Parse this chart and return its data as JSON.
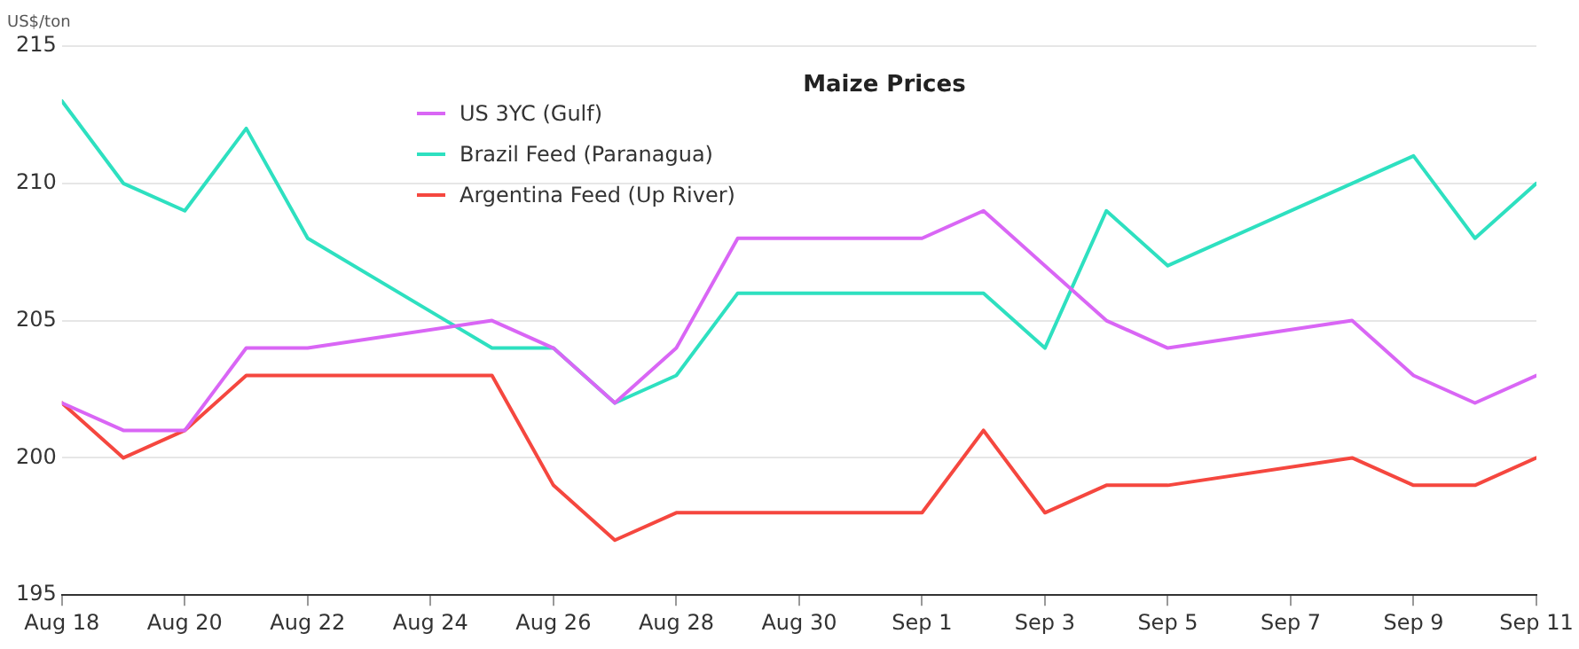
{
  "chart_data": {
    "type": "line",
    "title": "Maize Prices",
    "ylabel": "US$/ton",
    "x": [
      "--08-18",
      "--08-19",
      "--08-20",
      "--08-21",
      "--08-22",
      "--08-25",
      "--08-26",
      "--08-27",
      "--08-28",
      "--08-29",
      "--09-01",
      "--09-02",
      "--09-03",
      "--09-04",
      "--09-05",
      "--09-08",
      "--09-09",
      "--09-10",
      "--09-11"
    ],
    "series": [
      {
        "name": "US 3YC (Gulf)",
        "color": "#d966f5",
        "values": [
          202,
          201,
          201,
          204,
          204,
          205,
          204,
          202,
          204,
          208,
          208,
          209,
          207,
          205,
          204,
          205,
          203,
          202,
          203
        ]
      },
      {
        "name": "Brazil Feed (Paranagua)",
        "color": "#2ee0c0",
        "values": [
          213,
          210,
          209,
          212,
          208,
          204,
          204,
          202,
          203,
          206,
          206,
          206,
          204,
          209,
          207,
          210,
          211,
          208,
          210
        ]
      },
      {
        "name": "Argentina Feed (Up River)",
        "color": "#f5473f",
        "values": [
          202,
          200,
          201,
          203,
          203,
          203,
          199,
          197,
          198,
          198,
          198,
          201,
          198,
          199,
          199,
          200,
          199,
          199,
          200
        ]
      }
    ],
    "xlim": [
      "--08-18",
      "--09-11"
    ],
    "xticks": [
      {
        "value": "--08-18",
        "label": "Aug 18"
      },
      {
        "value": "--08-20",
        "label": "Aug 20"
      },
      {
        "value": "--08-22",
        "label": "Aug 22"
      },
      {
        "value": "--08-24",
        "label": "Aug 24"
      },
      {
        "value": "--08-26",
        "label": "Aug 26"
      },
      {
        "value": "--08-28",
        "label": "Aug 28"
      },
      {
        "value": "--08-30",
        "label": "Aug 30"
      },
      {
        "value": "--09-01",
        "label": "Sep 1"
      },
      {
        "value": "--09-03",
        "label": "Sep 3"
      },
      {
        "value": "--09-05",
        "label": "Sep 5"
      },
      {
        "value": "--09-07",
        "label": "Sep 7"
      },
      {
        "value": "--09-09",
        "label": "Sep 9"
      },
      {
        "value": "--09-11",
        "label": "Sep 11"
      }
    ],
    "ylim": [
      195,
      215
    ],
    "yticks": [
      195,
      200,
      205,
      210,
      215
    ],
    "grid": "y",
    "legend": "top left",
    "marker": "none",
    "line_style": "solid"
  }
}
